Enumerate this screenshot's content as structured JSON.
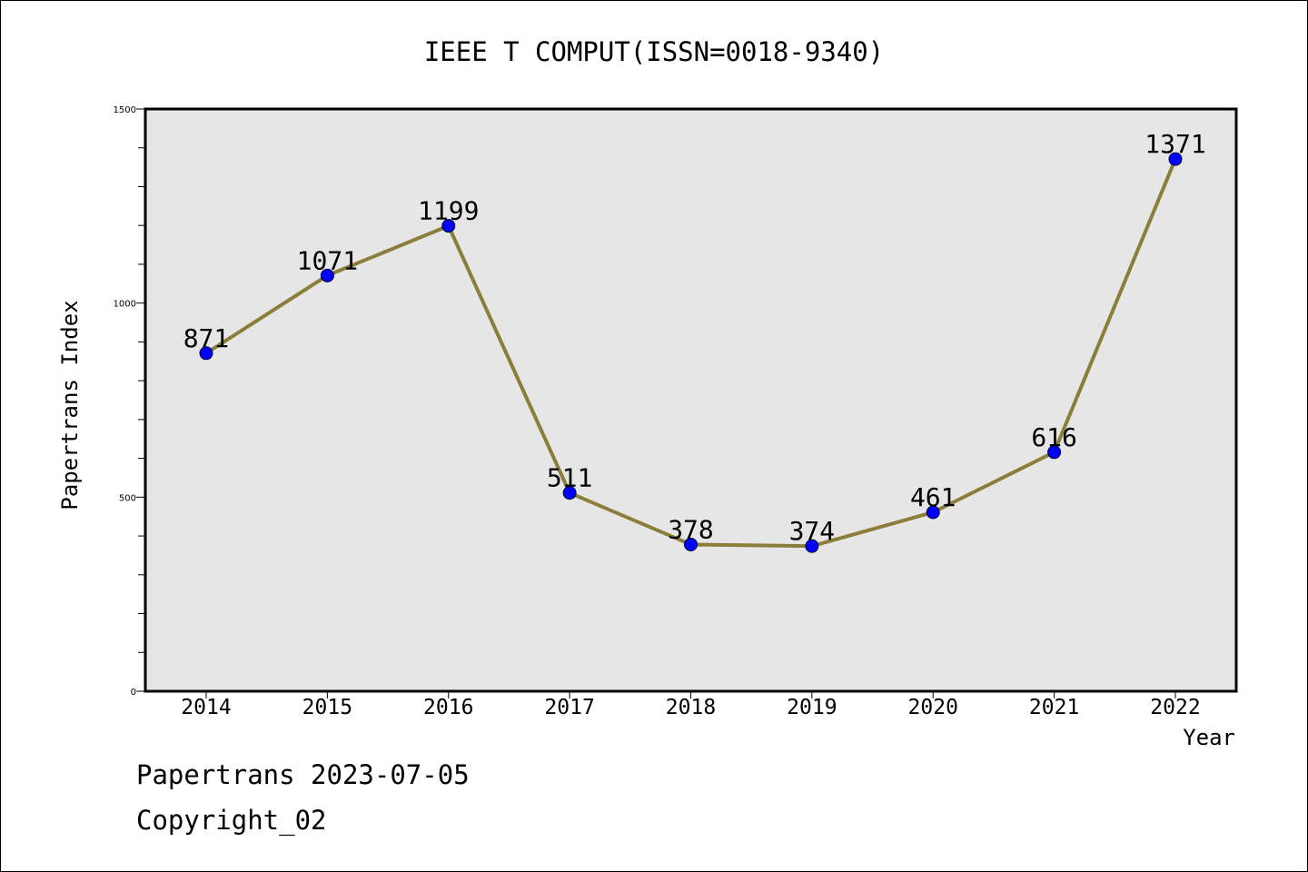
{
  "chart_data": {
    "type": "line",
    "title": "IEEE T COMPUT(ISSN=0018-9340)",
    "xlabel": "Year",
    "ylabel": "Papertrans Index",
    "categories": [
      "2014",
      "2015",
      "2016",
      "2017",
      "2018",
      "2019",
      "2020",
      "2021",
      "2022"
    ],
    "series": [
      {
        "values": [
          871,
          1071,
          1199,
          511,
          378,
          374,
          461,
          616,
          1371
        ]
      }
    ],
    "data_labels": [
      "871",
      "1071",
      "1199",
      "511",
      "378",
      "374",
      "461",
      "616",
      "1371"
    ],
    "ylim": [
      0,
      1500
    ],
    "yticks": [
      "0",
      "500",
      "1000",
      "1500"
    ],
    "grid": false,
    "legend": "none",
    "colors": {
      "line": "#8b7d3a",
      "marker": "#0000ff",
      "plot_background": "#e6e6e6"
    }
  },
  "footer": {
    "date_text": "Papertrans 2023-07-05",
    "copyright_text": "Copyright_02"
  }
}
